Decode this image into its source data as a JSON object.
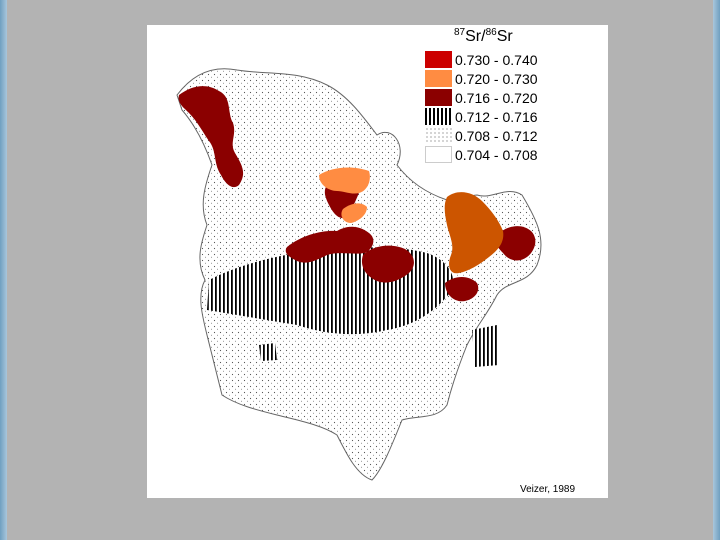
{
  "legend": {
    "title_base": "Sr",
    "title_sup_1": "87",
    "title_sup_2": "86",
    "title_sep": "/",
    "items": [
      {
        "label": "0.730 - 0.740",
        "color": "#cc0000",
        "pattern": "solid"
      },
      {
        "label": "0.720 - 0.730",
        "color": "#ff8c42",
        "pattern": "solid"
      },
      {
        "label": "0.716 - 0.720",
        "color": "#8b0000",
        "pattern": "solid"
      },
      {
        "label": "0.712 - 0.716",
        "color": "#000000",
        "pattern": "vertical-stripes"
      },
      {
        "label": "0.708 - 0.712",
        "color": "#000000",
        "pattern": "dots"
      },
      {
        "label": "0.704 - 0.708",
        "color": "#ffffff",
        "pattern": "blank"
      }
    ]
  },
  "credit": "Veizer, 1989",
  "colors": {
    "dark_red": "#8b0000",
    "orange": "#ff8c42",
    "burnt_orange": "#cc5500",
    "background": "#b3b3b3",
    "panel": "#ffffff"
  }
}
